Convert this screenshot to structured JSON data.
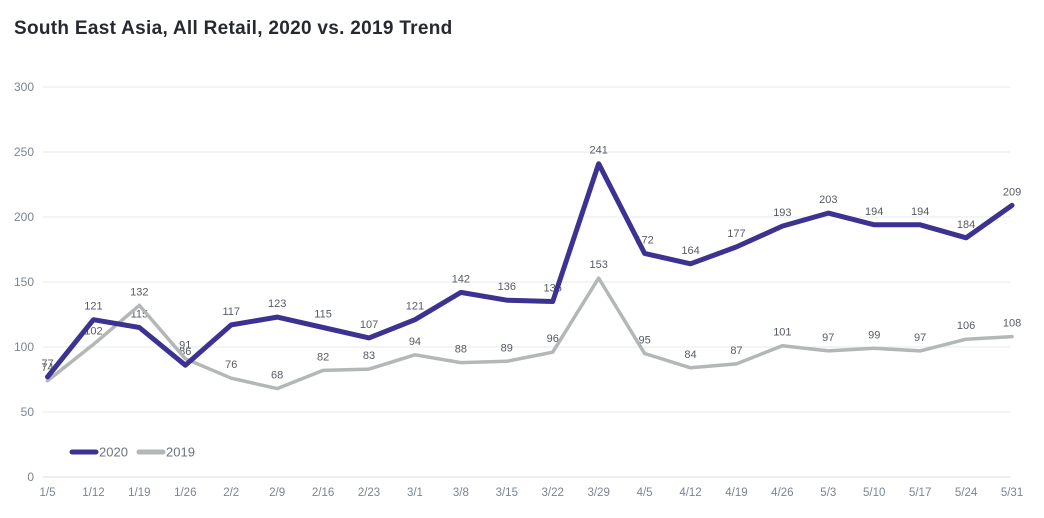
{
  "chart_data": {
    "type": "line",
    "title": "South East Asia, All Retail, 2020 vs. 2019 Trend",
    "categories": [
      "1/5",
      "1/12",
      "1/19",
      "1/26",
      "2/2",
      "2/9",
      "2/16",
      "2/23",
      "3/1",
      "3/8",
      "3/15",
      "3/22",
      "3/29",
      "4/5",
      "4/12",
      "4/19",
      "4/26",
      "5/3",
      "5/10",
      "5/17",
      "5/24",
      "5/31"
    ],
    "series": [
      {
        "name": "2019",
        "color": "#b3b7b7",
        "stroke_width": 3.5,
        "values": [
          74,
          102,
          132,
          91,
          76,
          68,
          82,
          83,
          94,
          88,
          89,
          96,
          153,
          95,
          84,
          87,
          101,
          97,
          99,
          97,
          106,
          108
        ]
      },
      {
        "name": "2020",
        "color": "#3c3292",
        "stroke_width": 5,
        "values": [
          77,
          121,
          115,
          86,
          117,
          123,
          115,
          107,
          121,
          142,
          136,
          135,
          241,
          172,
          164,
          177,
          193,
          203,
          194,
          194,
          184,
          209
        ]
      }
    ],
    "y_ticks": [
      0,
      50,
      100,
      150,
      200,
      250,
      300
    ],
    "ylim": [
      0,
      300
    ],
    "grid": "horizontal",
    "data_labels": true,
    "legend_position": "bottom-left",
    "legend": [
      {
        "label": "2020",
        "color": "#3c3292"
      },
      {
        "label": "2019",
        "color": "#b3b7b7"
      }
    ]
  },
  "colors": {
    "gridline": "#e7e8ea",
    "axis_line": "#dcdee0",
    "tick_label": "#7b8591",
    "data_label": "#565b63",
    "legend_label": "#6d737c",
    "title": "#26292f"
  }
}
